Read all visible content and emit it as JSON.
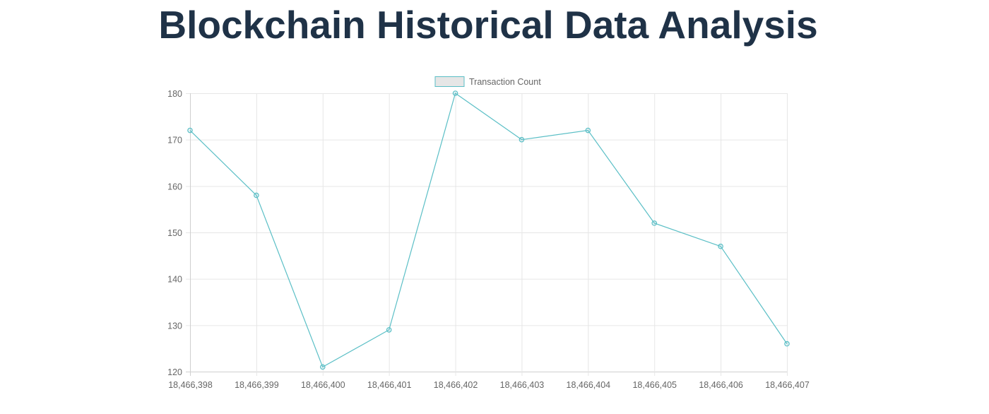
{
  "page": {
    "title": "Blockchain Historical Data Analysis"
  },
  "legend": {
    "label": "Transaction Count",
    "swatch_fill": "#e6e6e6",
    "swatch_stroke": "#5bbfc6"
  },
  "colors": {
    "title": "#1f3247",
    "line": "#5bbfc6",
    "grid": "#e6e6e6",
    "axis_text": "#666666"
  },
  "chart_data": {
    "type": "line",
    "title": "Blockchain Historical Data Analysis",
    "xlabel": "",
    "ylabel": "",
    "categories": [
      "18,466,398",
      "18,466,399",
      "18,466,400",
      "18,466,401",
      "18,466,402",
      "18,466,403",
      "18,466,404",
      "18,466,405",
      "18,466,406",
      "18,466,407"
    ],
    "series": [
      {
        "name": "Transaction Count",
        "values": [
          172,
          158,
          121,
          129,
          180,
          170,
          172,
          152,
          147,
          126
        ]
      }
    ],
    "ylim": [
      120,
      180
    ],
    "yticks": [
      120,
      130,
      140,
      150,
      160,
      170,
      180
    ],
    "grid": true,
    "legend_position": "top"
  }
}
